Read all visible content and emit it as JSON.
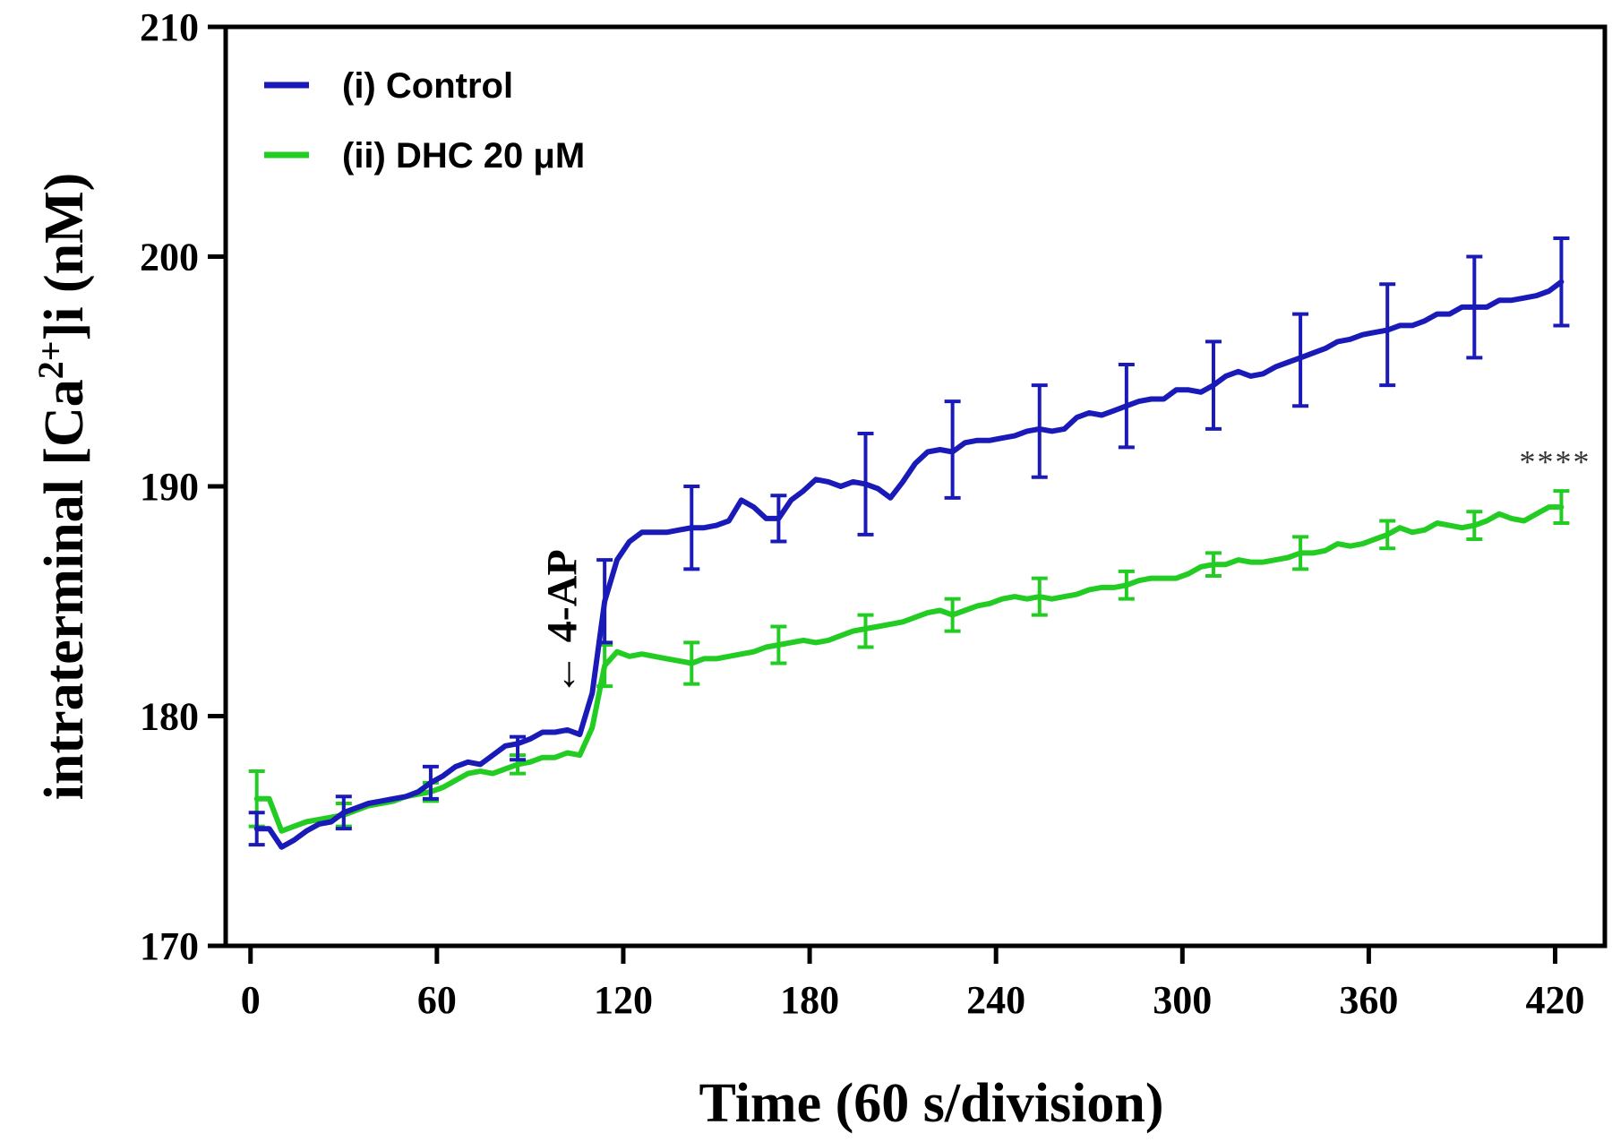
{
  "chart_data": {
    "type": "line",
    "title": "",
    "xlabel": "Time (60 s/division)",
    "ylabel": "intraterminal [Ca2+]i (nM)",
    "ylabel_parts": {
      "pre": "intraterminal [Ca",
      "sup": "2+",
      "post": "]i  (nM)"
    },
    "xlim": [
      -8,
      436
    ],
    "ylim": [
      170,
      210
    ],
    "xticks": [
      0,
      60,
      120,
      180,
      240,
      300,
      360,
      420
    ],
    "yticks": [
      170,
      180,
      190,
      200,
      210
    ],
    "legend_position": "top-left",
    "annotations": [
      {
        "text": "← 4-AP",
        "x": 102,
        "y": 180.4
      },
      {
        "text": "****",
        "x": 420,
        "y": 190.6
      }
    ],
    "series": [
      {
        "name": "(i) Control",
        "color": "#1a1ab8",
        "x": [
          2,
          6,
          10,
          14,
          18,
          22,
          26,
          30,
          34,
          38,
          42,
          46,
          50,
          54,
          58,
          62,
          66,
          70,
          74,
          78,
          82,
          86,
          90,
          94,
          98,
          102,
          106,
          110,
          114,
          118,
          122,
          126,
          130,
          134,
          138,
          142,
          146,
          150,
          154,
          158,
          162,
          166,
          170,
          174,
          178,
          182,
          186,
          190,
          194,
          198,
          202,
          206,
          210,
          214,
          218,
          222,
          226,
          230,
          234,
          238,
          242,
          246,
          250,
          254,
          258,
          262,
          266,
          270,
          274,
          278,
          282,
          286,
          290,
          294,
          298,
          302,
          306,
          310,
          314,
          318,
          322,
          326,
          330,
          334,
          338,
          342,
          346,
          350,
          354,
          358,
          362,
          366,
          370,
          374,
          378,
          382,
          386,
          390,
          394,
          398,
          402,
          406,
          410,
          414,
          418,
          422
        ],
        "y": [
          175.1,
          175.1,
          174.3,
          174.6,
          175.0,
          175.3,
          175.4,
          175.8,
          176.0,
          176.2,
          176.3,
          176.4,
          176.5,
          176.7,
          177.1,
          177.4,
          177.8,
          178.0,
          177.9,
          178.3,
          178.7,
          178.8,
          179.0,
          179.3,
          179.3,
          179.4,
          179.2,
          181.0,
          185.0,
          186.8,
          187.6,
          188.0,
          188.0,
          188.0,
          188.1,
          188.2,
          188.2,
          188.3,
          188.5,
          189.4,
          189.1,
          188.6,
          188.6,
          189.4,
          189.8,
          190.3,
          190.2,
          190.0,
          190.2,
          190.1,
          189.9,
          189.5,
          190.2,
          191.0,
          191.5,
          191.6,
          191.5,
          191.9,
          192.0,
          192.0,
          192.1,
          192.2,
          192.4,
          192.5,
          192.4,
          192.5,
          193.0,
          193.2,
          193.1,
          193.3,
          193.5,
          193.7,
          193.8,
          193.8,
          194.2,
          194.2,
          194.1,
          194.4,
          194.8,
          195.0,
          194.8,
          194.9,
          195.2,
          195.4,
          195.6,
          195.8,
          196.0,
          196.3,
          196.4,
          196.6,
          196.7,
          196.8,
          197.0,
          197.0,
          197.2,
          197.5,
          197.5,
          197.8,
          197.8,
          197.8,
          198.1,
          198.1,
          198.2,
          198.3,
          198.5,
          198.9
        ],
        "error_bars": [
          {
            "x": 2,
            "y": 175.1,
            "err": 0.7
          },
          {
            "x": 30,
            "y": 175.8,
            "err": 0.7
          },
          {
            "x": 58,
            "y": 177.1,
            "err": 0.7
          },
          {
            "x": 86,
            "y": 178.6,
            "err": 0.5
          },
          {
            "x": 114,
            "y": 185.0,
            "err": 1.8
          },
          {
            "x": 142,
            "y": 188.2,
            "err": 1.8
          },
          {
            "x": 170,
            "y": 188.6,
            "err": 1.0
          },
          {
            "x": 198,
            "y": 190.1,
            "err": 2.2
          },
          {
            "x": 226,
            "y": 191.6,
            "err": 2.1
          },
          {
            "x": 254,
            "y": 192.4,
            "err": 2.0
          },
          {
            "x": 282,
            "y": 193.5,
            "err": 1.8
          },
          {
            "x": 310,
            "y": 194.4,
            "err": 1.9
          },
          {
            "x": 338,
            "y": 195.5,
            "err": 2.0
          },
          {
            "x": 366,
            "y": 196.6,
            "err": 2.2
          },
          {
            "x": 394,
            "y": 197.8,
            "err": 2.2
          },
          {
            "x": 422,
            "y": 198.9,
            "err": 1.9
          }
        ]
      },
      {
        "name": "(ii) DHC 20 μM",
        "color": "#22cc22",
        "x": [
          2,
          6,
          10,
          14,
          18,
          22,
          26,
          30,
          34,
          38,
          42,
          46,
          50,
          54,
          58,
          62,
          66,
          70,
          74,
          78,
          82,
          86,
          90,
          94,
          98,
          102,
          106,
          110,
          114,
          118,
          122,
          126,
          130,
          134,
          138,
          142,
          146,
          150,
          154,
          158,
          162,
          166,
          170,
          174,
          178,
          182,
          186,
          190,
          194,
          198,
          202,
          206,
          210,
          214,
          218,
          222,
          226,
          230,
          234,
          238,
          242,
          246,
          250,
          254,
          258,
          262,
          266,
          270,
          274,
          278,
          282,
          286,
          290,
          294,
          298,
          302,
          306,
          310,
          314,
          318,
          322,
          326,
          330,
          334,
          338,
          342,
          346,
          350,
          354,
          358,
          362,
          366,
          370,
          374,
          378,
          382,
          386,
          390,
          394,
          398,
          402,
          406,
          410,
          414,
          418,
          422
        ],
        "y": [
          176.4,
          176.4,
          175.0,
          175.2,
          175.4,
          175.5,
          175.6,
          175.7,
          175.9,
          176.1,
          176.2,
          176.3,
          176.5,
          176.6,
          176.7,
          176.9,
          177.2,
          177.5,
          177.6,
          177.5,
          177.7,
          177.9,
          178.0,
          178.2,
          178.2,
          178.4,
          178.3,
          179.5,
          182.2,
          182.8,
          182.6,
          182.7,
          182.6,
          182.5,
          182.4,
          182.3,
          182.5,
          182.5,
          182.6,
          182.7,
          182.8,
          183.0,
          183.1,
          183.2,
          183.3,
          183.2,
          183.3,
          183.5,
          183.7,
          183.8,
          183.9,
          184.0,
          184.1,
          184.3,
          184.5,
          184.6,
          184.4,
          184.6,
          184.8,
          184.9,
          185.1,
          185.2,
          185.1,
          185.2,
          185.1,
          185.2,
          185.3,
          185.5,
          185.6,
          185.6,
          185.7,
          185.9,
          186.0,
          186.0,
          186.0,
          186.2,
          186.5,
          186.6,
          186.6,
          186.8,
          186.7,
          186.7,
          186.8,
          186.9,
          187.1,
          187.1,
          187.2,
          187.5,
          187.4,
          187.5,
          187.7,
          187.9,
          188.2,
          188.0,
          188.1,
          188.4,
          188.3,
          188.2,
          188.3,
          188.5,
          188.8,
          188.6,
          188.5,
          188.8,
          189.1,
          189.1
        ],
        "error_bars": [
          {
            "x": 2,
            "y": 176.4,
            "err": 1.2
          },
          {
            "x": 30,
            "y": 175.7,
            "err": 0.5
          },
          {
            "x": 58,
            "y": 176.7,
            "err": 0.4
          },
          {
            "x": 86,
            "y": 177.9,
            "err": 0.4
          },
          {
            "x": 114,
            "y": 182.2,
            "err": 0.9
          },
          {
            "x": 142,
            "y": 182.3,
            "err": 0.9
          },
          {
            "x": 170,
            "y": 183.1,
            "err": 0.8
          },
          {
            "x": 198,
            "y": 183.7,
            "err": 0.7
          },
          {
            "x": 226,
            "y": 184.4,
            "err": 0.7
          },
          {
            "x": 254,
            "y": 185.2,
            "err": 0.8
          },
          {
            "x": 282,
            "y": 185.7,
            "err": 0.6
          },
          {
            "x": 310,
            "y": 186.6,
            "err": 0.5
          },
          {
            "x": 338,
            "y": 187.1,
            "err": 0.7
          },
          {
            "x": 366,
            "y": 187.9,
            "err": 0.6
          },
          {
            "x": 394,
            "y": 188.3,
            "err": 0.6
          },
          {
            "x": 422,
            "y": 189.1,
            "err": 0.7
          }
        ]
      }
    ]
  }
}
